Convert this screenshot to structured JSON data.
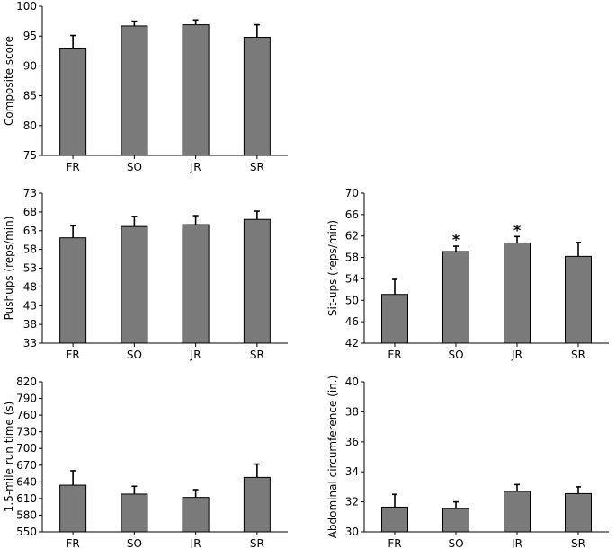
{
  "style": {
    "bar_color": "#7a7a7a",
    "axis_color": "#000000",
    "background": "#ffffff"
  },
  "chart_data": [
    {
      "id": "composite",
      "type": "bar",
      "categories": [
        "FR",
        "SO",
        "JR",
        "SR"
      ],
      "values": [
        93.0,
        96.7,
        96.9,
        94.8
      ],
      "errors": [
        2.1,
        0.8,
        0.8,
        2.1
      ],
      "significance": [
        "",
        "",
        "",
        ""
      ],
      "ylabel": "Composite score",
      "ylim": [
        75,
        100
      ],
      "yticks": [
        75,
        80,
        85,
        90,
        95,
        100
      ]
    },
    {
      "id": "pushups",
      "type": "bar",
      "categories": [
        "FR",
        "SO",
        "JR",
        "SR"
      ],
      "values": [
        61.1,
        64.1,
        64.6,
        66.0
      ],
      "errors": [
        3.2,
        2.7,
        2.4,
        2.2
      ],
      "significance": [
        "",
        "",
        "",
        ""
      ],
      "ylabel": "Pushups (reps/min)",
      "ylim": [
        33,
        73
      ],
      "yticks": [
        33,
        38,
        43,
        48,
        53,
        58,
        63,
        68,
        73
      ]
    },
    {
      "id": "situps",
      "type": "bar",
      "categories": [
        "FR",
        "SO",
        "JR",
        "SR"
      ],
      "values": [
        51.1,
        59.1,
        60.7,
        58.2
      ],
      "errors": [
        2.8,
        1.0,
        1.2,
        2.6
      ],
      "significance": [
        "",
        "*",
        "*",
        ""
      ],
      "ylabel": "Sit-ups (reps/min)",
      "ylim": [
        42,
        70
      ],
      "yticks": [
        42,
        46,
        50,
        54,
        58,
        62,
        66,
        70
      ]
    },
    {
      "id": "run",
      "type": "bar",
      "categories": [
        "FR",
        "SO",
        "JR",
        "SR"
      ],
      "values": [
        634,
        618,
        612,
        648
      ],
      "errors": [
        26,
        14,
        14,
        24
      ],
      "significance": [
        "",
        "",
        "",
        ""
      ],
      "ylabel": "1.5-mile run time (s)",
      "ylim": [
        550,
        820
      ],
      "yticks": [
        550,
        580,
        610,
        640,
        670,
        700,
        730,
        760,
        790,
        820
      ]
    },
    {
      "id": "abdominal",
      "type": "bar",
      "categories": [
        "FR",
        "SO",
        "JR",
        "SR"
      ],
      "values": [
        31.65,
        31.55,
        32.7,
        32.55
      ],
      "errors": [
        0.85,
        0.45,
        0.45,
        0.45
      ],
      "significance": [
        "",
        "",
        "",
        ""
      ],
      "ylabel": "Abdominal circumference (in.)",
      "ylim": [
        30,
        40
      ],
      "yticks": [
        30,
        32,
        34,
        36,
        38,
        40
      ]
    }
  ]
}
